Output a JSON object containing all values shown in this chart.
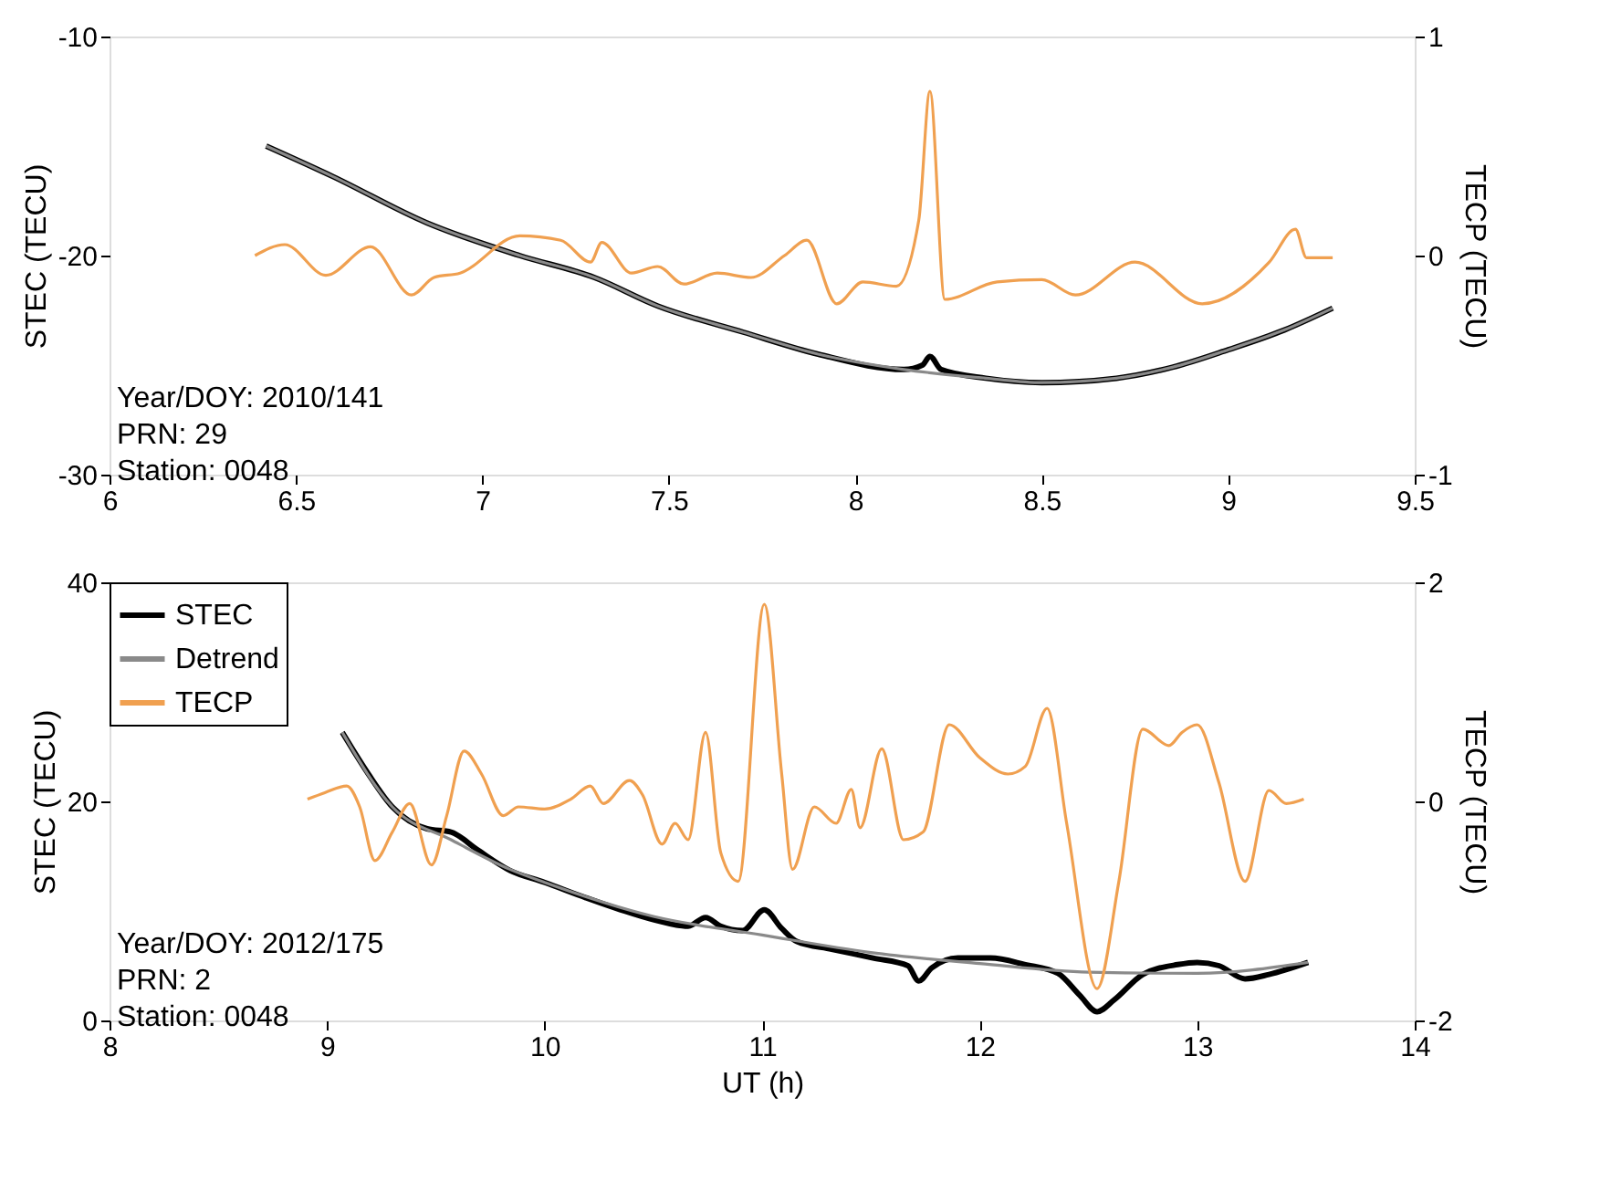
{
  "chart_data": [
    {
      "type": "line",
      "ylabel": "STEC (TECU)",
      "y2label": "TECP (TECU)",
      "xlim": [
        6,
        9.5
      ],
      "xticks": [
        6,
        6.5,
        7,
        7.5,
        8,
        8.5,
        9,
        9.5
      ],
      "ylim": [
        -30,
        -10
      ],
      "yticks": [
        -30,
        -20,
        -10
      ],
      "y2lim": [
        -1,
        1
      ],
      "y2ticks": [
        -1,
        0,
        1
      ],
      "grid": false,
      "legend": false,
      "annotations": [
        "Year/DOY: 2010/141",
        "PRN: 29",
        "Station: 0048"
      ],
      "series": [
        {
          "color": "#000000",
          "x": [
            6.42,
            6.6,
            6.85,
            7.1,
            7.3,
            7.47,
            7.7,
            7.9,
            8.13,
            8.18,
            8.2,
            8.23,
            8.35,
            8.5,
            8.7,
            8.85,
            9.0,
            9.15,
            9.28
          ],
          "values": [
            -15.0,
            -16.4,
            -18.5,
            -20.0,
            -21.0,
            -22.3,
            -23.5,
            -24.5,
            -25.2,
            -25.0,
            -24.6,
            -25.2,
            -25.6,
            -25.8,
            -25.6,
            -25.1,
            -24.3,
            -23.4,
            -22.4
          ]
        },
        {
          "color": "#8a8a8a",
          "x": [
            6.42,
            6.6,
            6.85,
            7.1,
            7.3,
            7.47,
            7.7,
            7.9,
            8.13,
            8.35,
            8.5,
            8.7,
            8.85,
            9.0,
            9.15,
            9.28
          ],
          "values": [
            -15.0,
            -16.4,
            -18.5,
            -20.0,
            -21.0,
            -22.3,
            -23.5,
            -24.5,
            -25.2,
            -25.6,
            -25.8,
            -25.6,
            -25.1,
            -24.3,
            -23.4,
            -22.4
          ]
        },
        {
          "color": "#f0a050",
          "axis": "y2",
          "x": [
            6.39,
            6.47,
            6.58,
            6.7,
            6.81,
            6.87,
            6.94,
            7.1,
            7.21,
            7.29,
            7.32,
            7.4,
            7.47,
            7.54,
            7.63,
            7.72,
            7.81,
            7.87,
            7.95,
            8.02,
            8.11,
            8.17,
            8.2,
            8.24,
            8.38,
            8.5,
            8.59,
            8.75,
            8.93,
            9.11,
            9.18,
            9.21,
            9.28
          ],
          "values": [
            0,
            0.05,
            -0.09,
            0.04,
            -0.18,
            -0.1,
            -0.08,
            0.09,
            0.07,
            -0.03,
            0.06,
            -0.08,
            -0.05,
            -0.13,
            -0.08,
            -0.1,
            0,
            0.07,
            -0.22,
            -0.12,
            -0.14,
            0.16,
            0.75,
            -0.2,
            -0.12,
            -0.11,
            -0.18,
            -0.03,
            -0.22,
            -0.03,
            0.12,
            -0.01,
            -0.01
          ]
        }
      ]
    },
    {
      "type": "line",
      "xlabel": "UT (h)",
      "ylabel": "STEC (TECU)",
      "y2label": "TECP (TECU)",
      "xlim": [
        8,
        14
      ],
      "xticks": [
        8,
        9,
        10,
        11,
        12,
        13,
        14
      ],
      "ylim": [
        0,
        40
      ],
      "yticks": [
        0,
        20,
        40
      ],
      "y2lim": [
        -2,
        2
      ],
      "y2ticks": [
        -2,
        0,
        2
      ],
      "grid": false,
      "legend": "top left",
      "annotations": [
        "Year/DOY: 2012/175",
        "PRN: 2",
        "Station: 0048"
      ],
      "series": [
        {
          "name": "STEC",
          "color": "#000000",
          "x": [
            9.07,
            9.19,
            9.3,
            9.46,
            9.57,
            9.69,
            9.84,
            10.0,
            10.19,
            10.35,
            10.5,
            10.66,
            10.74,
            10.81,
            10.91,
            11.01,
            11.09,
            11.16,
            11.32,
            11.51,
            11.67,
            11.72,
            11.78,
            11.9,
            12.05,
            12.21,
            12.36,
            12.46,
            12.54,
            12.62,
            12.75,
            12.91,
            13.0,
            13.1,
            13.22,
            13.33,
            13.51
          ],
          "values": [
            26.3,
            22.5,
            19.5,
            17.5,
            17.2,
            15.6,
            13.7,
            12.6,
            11.2,
            10.1,
            9.2,
            8.6,
            9.4,
            8.6,
            8.2,
            10.1,
            8.4,
            7.2,
            6.5,
            5.7,
            5.0,
            3.6,
            4.8,
            5.7,
            5.7,
            5.1,
            4.3,
            2.3,
            0.8,
            1.9,
            4.2,
            5.1,
            5.3,
            5.0,
            3.8,
            4.2,
            5.3
          ]
        },
        {
          "name": "Detrend",
          "color": "#8a8a8a",
          "x": [
            9.07,
            9.3,
            9.57,
            9.84,
            10.0,
            10.5,
            11.0,
            11.5,
            12.0,
            12.5,
            13.0,
            13.51
          ],
          "values": [
            26.3,
            19.5,
            16.5,
            13.8,
            12.6,
            9.5,
            7.8,
            6.2,
            5.2,
            4.4,
            4.3,
            5.3
          ]
        },
        {
          "name": "TECP",
          "color": "#f0a050",
          "axis": "y2",
          "x": [
            8.91,
            8.99,
            9.09,
            9.15,
            9.22,
            9.3,
            9.38,
            9.48,
            9.55,
            9.63,
            9.71,
            9.81,
            9.88,
            10.0,
            10.12,
            10.21,
            10.27,
            10.39,
            10.45,
            10.54,
            10.6,
            10.66,
            10.74,
            10.81,
            10.89,
            11.01,
            11.09,
            11.14,
            11.24,
            11.34,
            11.41,
            11.45,
            11.55,
            11.65,
            11.74,
            11.86,
            12.0,
            12.13,
            12.21,
            12.31,
            12.4,
            12.54,
            12.64,
            12.75,
            12.87,
            12.93,
            13.0,
            13.1,
            13.22,
            13.33,
            13.41,
            13.49
          ],
          "values": [
            0.02,
            0.08,
            0.14,
            -0.05,
            -0.54,
            -0.28,
            -0.02,
            -0.58,
            -0.13,
            0.46,
            0.25,
            -0.13,
            -0.05,
            -0.07,
            0.02,
            0.14,
            -0.02,
            0.19,
            0.06,
            -0.39,
            -0.2,
            -0.35,
            0.63,
            -0.47,
            -0.73,
            1.8,
            0.25,
            -0.62,
            -0.05,
            -0.2,
            0.11,
            -0.24,
            0.48,
            -0.35,
            -0.28,
            0.7,
            0.4,
            0.25,
            0.32,
            0.85,
            -0.2,
            -1.71,
            -0.73,
            0.66,
            0.51,
            0.63,
            0.7,
            0.17,
            -0.73,
            0.1,
            -0.02,
            0.02
          ]
        }
      ]
    }
  ]
}
